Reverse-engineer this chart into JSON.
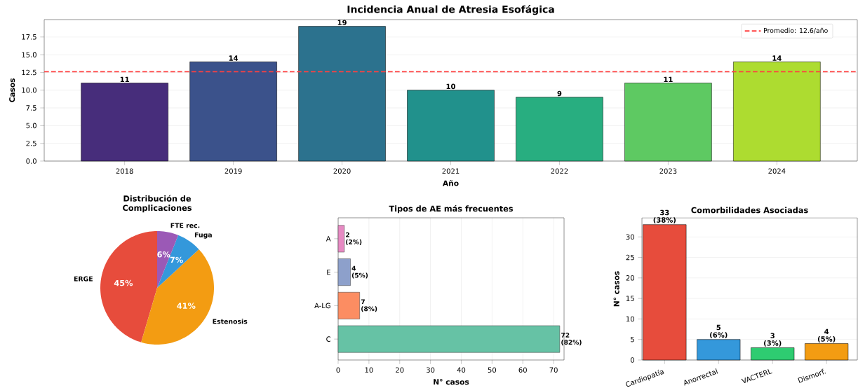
{
  "chart_data": [
    {
      "type": "bar",
      "title": "Incidencia Anual de Atresia Esofágica",
      "xlabel": "Año",
      "ylabel": "Casos",
      "categories": [
        "2018",
        "2019",
        "2020",
        "2021",
        "2022",
        "2023",
        "2024"
      ],
      "values": [
        11,
        14,
        19,
        10,
        9,
        11,
        14
      ],
      "colors": [
        "#472d7b",
        "#3b528b",
        "#2c728e",
        "#21918c",
        "#28ae80",
        "#5ec962",
        "#addc30"
      ],
      "ylim": [
        0,
        19.95
      ],
      "yticks": [
        {
          "value": 0,
          "label": "0.0"
        },
        {
          "value": 2.5,
          "label": "2.5"
        },
        {
          "value": 5,
          "label": "5.0"
        },
        {
          "value": 7.5,
          "label": "7.5"
        },
        {
          "value": 10,
          "label": "10.0"
        },
        {
          "value": 12.5,
          "label": "12.5"
        },
        {
          "value": 15,
          "label": "15.0"
        },
        {
          "value": 17.5,
          "label": "17.5"
        }
      ],
      "grid": "y",
      "data_labels": true,
      "legend": "top right",
      "ref_lines": [
        {
          "axis": "y",
          "value": 12.6,
          "label": "Promedio: 12.6/año",
          "color": "#ff4040",
          "line_style": "dashed"
        }
      ]
    },
    {
      "type": "pie",
      "title": "Distribución de Complicaciones",
      "categories": [
        "ERGE",
        "Estenosis",
        "Fuga",
        "FTE rec."
      ],
      "values": [
        45,
        41,
        7,
        6
      ],
      "value_labels": [
        "45%",
        "41%",
        "7%",
        "6%"
      ],
      "colors": [
        "#e74c3c",
        "#f39c12",
        "#3498db",
        "#9b59b6"
      ]
    },
    {
      "type": "bar",
      "orientation": "horizontal",
      "title": "Tipos de AE más frecuentes",
      "xlabel": "N° casos",
      "categories": [
        "A",
        "E",
        "A-LG",
        "C"
      ],
      "values": [
        2,
        4,
        7,
        72
      ],
      "value_labels": [
        "2 (2%)",
        "4 (5%)",
        "7 (8%)",
        "72 (82%)"
      ],
      "colors": [
        "#e78ac3",
        "#8da0cb",
        "#fc8d62",
        "#66c2a5"
      ],
      "xlim": [
        0,
        73.4
      ],
      "xticks": [
        0,
        10,
        20,
        30,
        40,
        50,
        60,
        70
      ],
      "grid": "x"
    },
    {
      "type": "bar",
      "title": "Comorbilidades Asociadas",
      "ylabel": "N° casos",
      "categories": [
        "Cardiopatía",
        "Anorrectal",
        "VACTERL",
        "Dismorf."
      ],
      "values": [
        33,
        5,
        3,
        4
      ],
      "value_labels": [
        "33 (38%)",
        "5 (6%)",
        "3 (3%)",
        "4 (5%)"
      ],
      "colors": [
        "#e74c3c",
        "#3498db",
        "#2ecc71",
        "#f39c12"
      ],
      "ylim": [
        0,
        34.65
      ],
      "yticks": [
        0,
        5,
        10,
        15,
        20,
        25,
        30
      ],
      "grid": "y"
    }
  ]
}
